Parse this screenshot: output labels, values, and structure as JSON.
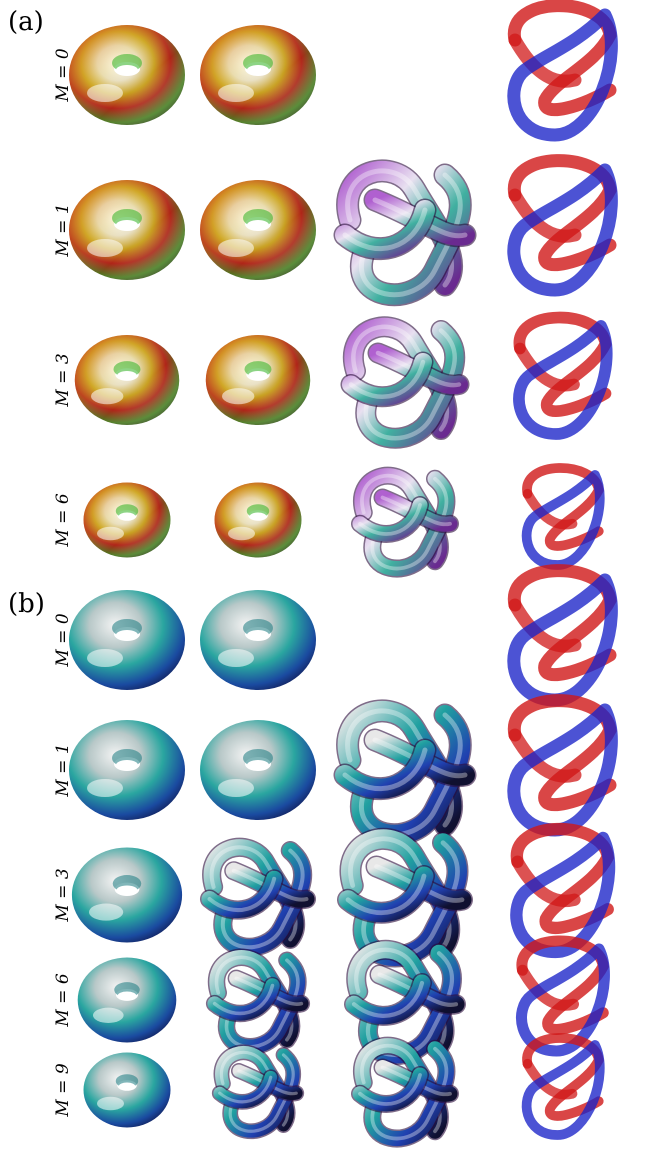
{
  "panels": [
    {
      "label": "(a)",
      "style": "hue",
      "rows": [
        {
          "label": "M = 0",
          "has_knot": false
        },
        {
          "label": "M = 1",
          "has_knot": true
        },
        {
          "label": "M = 3",
          "has_knot": true
        },
        {
          "label": "M = 6",
          "has_knot": true
        }
      ]
    },
    {
      "label": "(b)",
      "style": "teal",
      "rows": [
        {
          "label": "M = 0",
          "has_knot": false
        },
        {
          "label": "M = 1",
          "has_knot": true
        },
        {
          "label": "M = 3",
          "has_knot": true
        },
        {
          "label": "M = 6",
          "has_knot": true
        },
        {
          "label": "M = 9",
          "has_knot": true
        }
      ]
    }
  ],
  "colors": {
    "tube_red": "#d01818",
    "tube_blue": "#1a22c8",
    "knot_purple": "#9a3fb0",
    "teal": "#1f8a9a"
  }
}
